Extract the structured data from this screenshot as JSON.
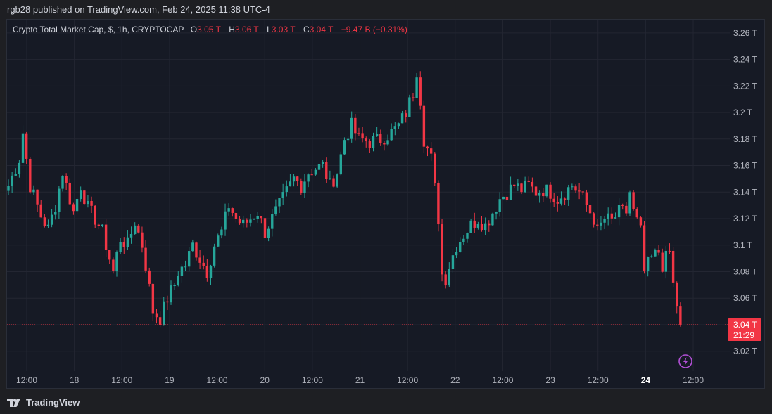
{
  "header": {
    "published": "rgb28 published on TradingView.com, Feb 24, 2025 11:38 UTC-4"
  },
  "legend": {
    "symbol": "Crypto Total Market Cap, $, 1h, CRYPTOCAP",
    "o_key": "O",
    "o": "3.05 T",
    "h_key": "H",
    "h": "3.06 T",
    "l_key": "L",
    "l": "3.03 T",
    "c_key": "C",
    "c": "3.04 T",
    "change": "−9.47 B (−0.31%)"
  },
  "footer": {
    "brand": "TradingView"
  },
  "colors": {
    "up": "#26a69a",
    "down": "#f23645",
    "bg": "#161a25",
    "grid": "#232632",
    "text": "#b2b5be",
    "last": "#f23645"
  },
  "chart_data": {
    "type": "candlestick",
    "title": "Crypto Total Market Cap, $, 1h, CRYPTOCAP",
    "unit": "T",
    "ylim": [
      3.005,
      3.27
    ],
    "y_ticks": [
      "3.02 T",
      "3.04 T",
      "3.06 T",
      "3.08 T",
      "3.1 T",
      "3.12 T",
      "3.14 T",
      "3.16 T",
      "3.18 T",
      "3.2 T",
      "3.22 T",
      "3.24 T",
      "3.26 T"
    ],
    "y_tick_values": [
      3.02,
      3.04,
      3.06,
      3.08,
      3.1,
      3.12,
      3.14,
      3.16,
      3.18,
      3.2,
      3.22,
      3.24,
      3.26
    ],
    "x_ticks": [
      "12:00",
      "18",
      "12:00",
      "19",
      "12:00",
      "20",
      "12:00",
      "21",
      "12:00",
      "22",
      "12:00",
      "23",
      "12:00",
      "24",
      "12:00"
    ],
    "x_tick_bold": [
      false,
      false,
      false,
      false,
      false,
      false,
      false,
      false,
      false,
      false,
      false,
      false,
      false,
      true,
      false
    ],
    "x_tick_hours": [
      12,
      24,
      36,
      48,
      60,
      72,
      84,
      96,
      108,
      120,
      132,
      144,
      156,
      168,
      180
    ],
    "first_bar_hour": 12,
    "bar_hours": 1,
    "last_price": 3.04,
    "last_price_label": "3.04 T",
    "countdown": "21:29",
    "close_path": [
      [
        0,
        3.145
      ],
      [
        3,
        3.165
      ],
      [
        4,
        3.185
      ],
      [
        6,
        3.145
      ],
      [
        9,
        3.122
      ],
      [
        11,
        3.112
      ],
      [
        13,
        3.13
      ],
      [
        15,
        3.155
      ],
      [
        18,
        3.125
      ],
      [
        20,
        3.145
      ],
      [
        22,
        3.128
      ],
      [
        24,
        3.12
      ],
      [
        26,
        3.11
      ],
      [
        27,
        3.1
      ],
      [
        29,
        3.08
      ],
      [
        31,
        3.105
      ],
      [
        33,
        3.1
      ],
      [
        35,
        3.118
      ],
      [
        37,
        3.1
      ],
      [
        38,
        3.085
      ],
      [
        40,
        3.05
      ],
      [
        42,
        3.045
      ],
      [
        44,
        3.06
      ],
      [
        46,
        3.07
      ],
      [
        47,
        3.08
      ],
      [
        49,
        3.085
      ],
      [
        51,
        3.1
      ],
      [
        53,
        3.09
      ],
      [
        55,
        3.08
      ],
      [
        57,
        3.1
      ],
      [
        59,
        3.11
      ],
      [
        61,
        3.13
      ],
      [
        63,
        3.12
      ],
      [
        65,
        3.115
      ],
      [
        67,
        3.12
      ],
      [
        69,
        3.125
      ],
      [
        71,
        3.11
      ],
      [
        73,
        3.12
      ],
      [
        75,
        3.13
      ],
      [
        77,
        3.14
      ],
      [
        79,
        3.15
      ],
      [
        81,
        3.145
      ],
      [
        83,
        3.155
      ],
      [
        85,
        3.158
      ],
      [
        87,
        3.16
      ],
      [
        89,
        3.145
      ],
      [
        91,
        3.155
      ],
      [
        93,
        3.18
      ],
      [
        95,
        3.19
      ],
      [
        97,
        3.18
      ],
      [
        100,
        3.178
      ],
      [
        103,
        3.18
      ],
      [
        106,
        3.185
      ],
      [
        108,
        3.19
      ],
      [
        110,
        3.2
      ],
      [
        112,
        3.215
      ],
      [
        113,
        3.232
      ],
      [
        114,
        3.21
      ],
      [
        115,
        3.18
      ],
      [
        117,
        3.165
      ],
      [
        119,
        3.12
      ],
      [
        120,
        3.078
      ],
      [
        121,
        3.075
      ],
      [
        122,
        3.085
      ],
      [
        124,
        3.1
      ],
      [
        126,
        3.108
      ],
      [
        128,
        3.115
      ],
      [
        130,
        3.12
      ],
      [
        132,
        3.115
      ],
      [
        134,
        3.125
      ],
      [
        136,
        3.135
      ],
      [
        138,
        3.14
      ],
      [
        140,
        3.145
      ],
      [
        142,
        3.142
      ],
      [
        144,
        3.145
      ],
      [
        146,
        3.14
      ],
      [
        148,
        3.142
      ],
      [
        150,
        3.14
      ],
      [
        152,
        3.135
      ],
      [
        154,
        3.14
      ],
      [
        156,
        3.145
      ],
      [
        158,
        3.14
      ],
      [
        160,
        3.13
      ],
      [
        162,
        3.12
      ],
      [
        163,
        3.11
      ],
      [
        165,
        3.12
      ],
      [
        167,
        3.118
      ],
      [
        169,
        3.125
      ],
      [
        171,
        3.125
      ],
      [
        172,
        3.14
      ],
      [
        173,
        3.125
      ],
      [
        175,
        3.11
      ],
      [
        176,
        3.08
      ],
      [
        178,
        3.09
      ],
      [
        180,
        3.095
      ],
      [
        181,
        3.085
      ],
      [
        183,
        3.095
      ],
      [
        184,
        3.07
      ],
      [
        185,
        3.055
      ],
      [
        186,
        3.04
      ]
    ]
  }
}
